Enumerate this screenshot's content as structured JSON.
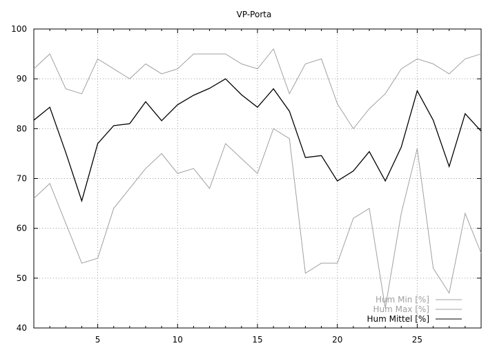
{
  "chart_data": {
    "type": "line",
    "title": "VP-Porta",
    "xlabel": "",
    "ylabel": "",
    "xlim": [
      1,
      29
    ],
    "ylim": [
      40,
      100
    ],
    "x_ticks": [
      5,
      10,
      15,
      20,
      25
    ],
    "y_ticks": [
      40,
      50,
      60,
      70,
      80,
      90,
      100
    ],
    "grid": true,
    "legend_position": "bottom-right",
    "x": [
      1,
      2,
      3,
      4,
      5,
      6,
      7,
      8,
      9,
      10,
      11,
      12,
      13,
      14,
      15,
      16,
      17,
      18,
      19,
      20,
      21,
      22,
      23,
      24,
      25,
      26,
      27,
      28,
      29
    ],
    "series": [
      {
        "name": "Hum Min [%]",
        "color": "#a0a0a0",
        "values": [
          66,
          69,
          61,
          53,
          54,
          64,
          68,
          72,
          75,
          71,
          72,
          68,
          77,
          74,
          71,
          80,
          78,
          51,
          53,
          53,
          62,
          64,
          44,
          63,
          76,
          52,
          47,
          63,
          55
        ]
      },
      {
        "name": "Hum Max [%]",
        "color": "#a0a0a0",
        "values": [
          92,
          95,
          88,
          87,
          94,
          92,
          90,
          93,
          91,
          92,
          95,
          95,
          95,
          93,
          92,
          96,
          87,
          93,
          94,
          85,
          80,
          84,
          87,
          92,
          94,
          93,
          91,
          94,
          95
        ]
      },
      {
        "name": "Hum Mittel [%]",
        "color": "#000000",
        "values": [
          81.7,
          84.3,
          75.2,
          65.5,
          77,
          80.6,
          81,
          85.4,
          81.6,
          84.8,
          86.7,
          88.1,
          90,
          86.8,
          84.3,
          88,
          83.5,
          74.2,
          74.6,
          69.5,
          71.5,
          75.4,
          69.5,
          76.3,
          87.6,
          81.7,
          72.4,
          83,
          79.5
        ]
      }
    ]
  }
}
